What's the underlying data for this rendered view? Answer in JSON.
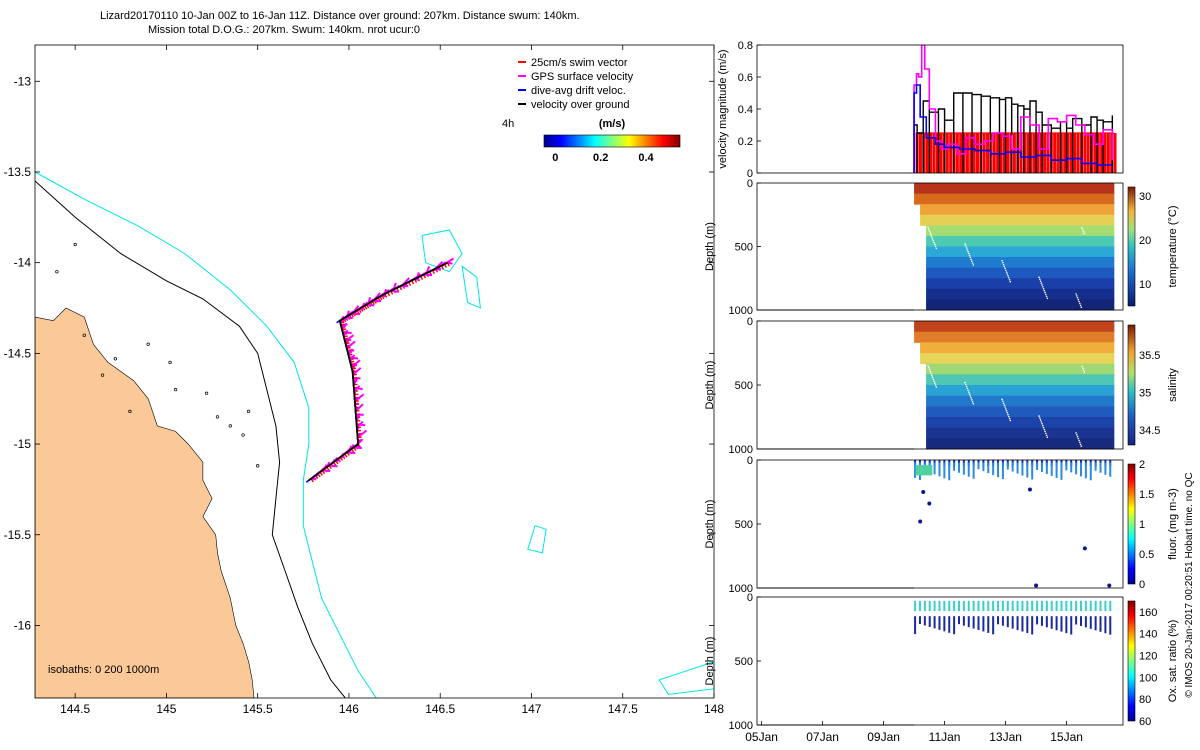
{
  "header": {
    "line1": "Lizard20170110 10-Jan 00Z to 16-Jan 11Z. Distance over ground: 207km. Distance swum: 140km.",
    "line2": "Mission total D.O.G.: 207km. Swum: 140km. nrot ucur:0"
  },
  "side_caption": "© IMOS 20-Jan-2017 00:20:51 Hobart time. no QC",
  "colors": {
    "land": "#fbc898",
    "isobath_200": "#000000",
    "isobath_1000": "#00e5e5",
    "swim": "#ff0000",
    "gps": "#ff00ff",
    "drift": "#0000ff",
    "ground": "#000000"
  },
  "chart_data": [
    {
      "id": "map",
      "type": "scatter",
      "xlim": [
        144.28,
        148.0
      ],
      "ylim": [
        -16.4,
        -12.8
      ],
      "x_ticks": [
        "144.5",
        "145",
        "145.5",
        "146",
        "146.5",
        "147",
        "147.5",
        "148"
      ],
      "y_ticks": [
        "-13",
        "-13.5",
        "-14",
        "-14.5",
        "-15",
        "-15.5",
        "-16"
      ],
      "isobath_label": "isobaths: 0   200  1000m",
      "legend": [
        {
          "label": "25cm/s swim vector",
          "color": "#ff0000"
        },
        {
          "label": "GPS surface velocity",
          "color": "#ff00ff"
        },
        {
          "label": "dive-avg drift veloc.",
          "color": "#0000ff"
        },
        {
          "label": "velocity over ground",
          "color": "#000000"
        }
      ],
      "time_label": "4h",
      "colorbar": {
        "label": "(m/s)",
        "ticks": [
          "0",
          "0.2",
          "0.4"
        ],
        "range": [
          -0.05,
          0.55
        ]
      },
      "track": [
        [
          146.54,
          -14.0
        ],
        [
          146.18,
          -14.18
        ],
        [
          145.95,
          -14.32
        ],
        [
          146.02,
          -14.6
        ],
        [
          146.05,
          -15.0
        ],
        [
          145.78,
          -15.2
        ]
      ],
      "coast": [
        [
          144.28,
          -14.3
        ],
        [
          144.38,
          -14.32
        ],
        [
          144.45,
          -14.25
        ],
        [
          144.55,
          -14.3
        ],
        [
          144.6,
          -14.45
        ],
        [
          144.68,
          -14.55
        ],
        [
          144.75,
          -14.6
        ],
        [
          144.82,
          -14.65
        ],
        [
          144.9,
          -14.75
        ],
        [
          144.95,
          -14.9
        ],
        [
          145.05,
          -14.93
        ],
        [
          145.12,
          -15.0
        ],
        [
          145.2,
          -15.1
        ],
        [
          145.2,
          -15.2
        ],
        [
          145.25,
          -15.3
        ],
        [
          145.2,
          -15.4
        ],
        [
          145.27,
          -15.5
        ],
        [
          145.28,
          -15.6
        ],
        [
          145.3,
          -15.7
        ],
        [
          145.35,
          -15.85
        ],
        [
          145.38,
          -16.0
        ],
        [
          145.42,
          -16.1
        ],
        [
          145.45,
          -16.2
        ],
        [
          145.47,
          -16.3
        ],
        [
          145.48,
          -16.4
        ],
        [
          144.28,
          -16.4
        ]
      ],
      "isobath_200": [
        [
          144.28,
          -13.55
        ],
        [
          144.5,
          -13.75
        ],
        [
          144.75,
          -13.95
        ],
        [
          145.0,
          -14.1
        ],
        [
          145.2,
          -14.2
        ],
        [
          145.4,
          -14.35
        ],
        [
          145.5,
          -14.5
        ],
        [
          145.55,
          -14.7
        ],
        [
          145.6,
          -14.9
        ],
        [
          145.62,
          -15.1
        ],
        [
          145.6,
          -15.3
        ],
        [
          145.58,
          -15.5
        ],
        [
          145.65,
          -15.7
        ],
        [
          145.72,
          -15.9
        ],
        [
          145.8,
          -16.1
        ],
        [
          145.9,
          -16.3
        ],
        [
          145.98,
          -16.4
        ]
      ],
      "isobath_1000": [
        [
          144.28,
          -13.5
        ],
        [
          144.55,
          -13.65
        ],
        [
          144.85,
          -13.8
        ],
        [
          145.1,
          -13.95
        ],
        [
          145.35,
          -14.15
        ],
        [
          145.55,
          -14.35
        ],
        [
          145.7,
          -14.55
        ],
        [
          145.78,
          -14.8
        ],
        [
          145.78,
          -15.0
        ],
        [
          145.75,
          -15.2
        ],
        [
          145.75,
          -15.45
        ],
        [
          145.8,
          -15.65
        ],
        [
          145.85,
          -15.85
        ],
        [
          145.95,
          -16.05
        ],
        [
          146.05,
          -16.25
        ],
        [
          146.15,
          -16.4
        ]
      ],
      "reefs": [
        [
          [
            146.4,
            -13.85
          ],
          [
            146.55,
            -13.82
          ],
          [
            146.62,
            -13.95
          ],
          [
            146.55,
            -14.05
          ],
          [
            146.42,
            -14.0
          ]
        ],
        [
          [
            146.62,
            -14.02
          ],
          [
            146.7,
            -14.08
          ],
          [
            146.72,
            -14.25
          ],
          [
            146.65,
            -14.22
          ]
        ],
        [
          [
            147.02,
            -15.45
          ],
          [
            147.08,
            -15.47
          ],
          [
            147.06,
            -15.6
          ],
          [
            146.98,
            -15.58
          ]
        ],
        [
          [
            147.7,
            -16.3
          ],
          [
            147.85,
            -16.25
          ],
          [
            148.0,
            -16.2
          ],
          [
            148.0,
            -16.35
          ],
          [
            147.75,
            -16.38
          ]
        ]
      ]
    },
    {
      "id": "velocity",
      "type": "line",
      "ylabel": "velocity magnitude (m/s)",
      "ylim": [
        0,
        0.8
      ],
      "y_ticks": [
        "0",
        "0.2",
        "0.4",
        "0.6",
        "0.8"
      ],
      "xlim": [
        5,
        17
      ],
      "series": [
        {
          "color": "#000000",
          "x": [
            10.0,
            10.1,
            10.3,
            10.5,
            10.8,
            11.0,
            11.3,
            11.6,
            11.9,
            12.2,
            12.5,
            12.8,
            13.0,
            13.2,
            13.4,
            13.6,
            13.8,
            14.0,
            14.2,
            14.5,
            14.8,
            15.0,
            15.2,
            15.5,
            15.8,
            16.0,
            16.2,
            16.5
          ],
          "y": [
            0.3,
            0.25,
            0.45,
            0.38,
            0.4,
            0.33,
            0.5,
            0.5,
            0.49,
            0.48,
            0.47,
            0.46,
            0.47,
            0.43,
            0.42,
            0.4,
            0.45,
            0.38,
            0.3,
            0.28,
            0.32,
            0.28,
            0.34,
            0.3,
            0.35,
            0.33,
            0.32,
            0.36
          ]
        },
        {
          "color": "#ff00ff",
          "x": [
            10.0,
            10.08,
            10.15,
            10.25,
            10.35,
            10.5,
            10.7,
            10.9,
            11.1,
            11.4,
            11.7,
            12.0,
            12.3,
            12.6,
            12.9,
            13.2,
            13.5,
            13.8,
            14.1,
            14.4,
            14.7,
            15.0,
            15.3,
            15.6,
            15.9,
            16.2,
            16.5
          ],
          "y": [
            0.55,
            0.62,
            0.6,
            0.8,
            0.65,
            0.4,
            0.2,
            0.15,
            0.18,
            0.12,
            0.22,
            0.18,
            0.2,
            0.25,
            0.23,
            0.15,
            0.35,
            0.3,
            0.15,
            0.34,
            0.32,
            0.36,
            0.3,
            0.24,
            0.18,
            0.27,
            0.08
          ]
        },
        {
          "color": "#0000ff",
          "x": [
            10.0,
            10.08,
            10.2,
            10.4,
            10.7,
            11.0,
            11.5,
            12.0,
            12.5,
            13.0,
            13.5,
            14.0,
            14.5,
            15.0,
            15.5,
            16.0,
            16.5
          ],
          "y": [
            0.5,
            0.55,
            0.35,
            0.22,
            0.18,
            0.16,
            0.15,
            0.14,
            0.12,
            0.13,
            0.1,
            0.11,
            0.08,
            0.09,
            0.06,
            0.05,
            0.05
          ]
        }
      ],
      "swim_bars": {
        "color": "#ff0000",
        "value": 0.25,
        "x_start": 10.05,
        "x_end": 16.55
      }
    },
    {
      "id": "temperature",
      "type": "heatmap",
      "ylabel": "Depth (m)",
      "ylim": [
        0,
        1000
      ],
      "y_ticks": [
        "0",
        "500",
        "1000"
      ],
      "colorbar_label": "temperature (°C)",
      "colorbar_ticks": [
        "30",
        "20",
        "10"
      ],
      "crange": [
        5,
        32
      ],
      "profile_x": [
        10.0,
        16.5
      ],
      "surface_value": 29,
      "deep_value": 6
    },
    {
      "id": "salinity",
      "type": "heatmap",
      "ylabel": "Depth (m)",
      "ylim": [
        0,
        1000
      ],
      "y_ticks": [
        "0",
        "500",
        "1000"
      ],
      "colorbar_label": "salinity",
      "colorbar_ticks": [
        "35.5",
        "35",
        "34.5"
      ],
      "crange": [
        34.3,
        35.9
      ],
      "profile_x": [
        10.0,
        16.5
      ]
    },
    {
      "id": "fluorescence",
      "type": "scatter",
      "ylabel": "Depth (m)",
      "ylim": [
        0,
        1000
      ],
      "y_ticks": [
        "0",
        "500",
        "1000"
      ],
      "colorbar_label": "fluor. (mg m-3)",
      "colorbar_ticks": [
        "2",
        "1.5",
        "1",
        "0.5",
        "0"
      ],
      "crange": [
        0,
        2
      ],
      "profile_x": [
        10.0,
        16.5
      ]
    },
    {
      "id": "oxygen",
      "type": "scatter",
      "ylabel": "Depth (m)",
      "ylim": [
        0,
        1000
      ],
      "y_ticks": [
        "0",
        "500",
        "1000"
      ],
      "colorbar_label": "Ox. sat. ratio (%)",
      "colorbar_ticks": [
        "160",
        "140",
        "120",
        "100",
        "80",
        "60"
      ],
      "crange": [
        60,
        170
      ],
      "profile_x": [
        10.0,
        16.5
      ],
      "x_ticks": [
        "05Jan",
        "07Jan",
        "09Jan",
        "11Jan",
        "13Jan",
        "15Jan"
      ]
    }
  ]
}
